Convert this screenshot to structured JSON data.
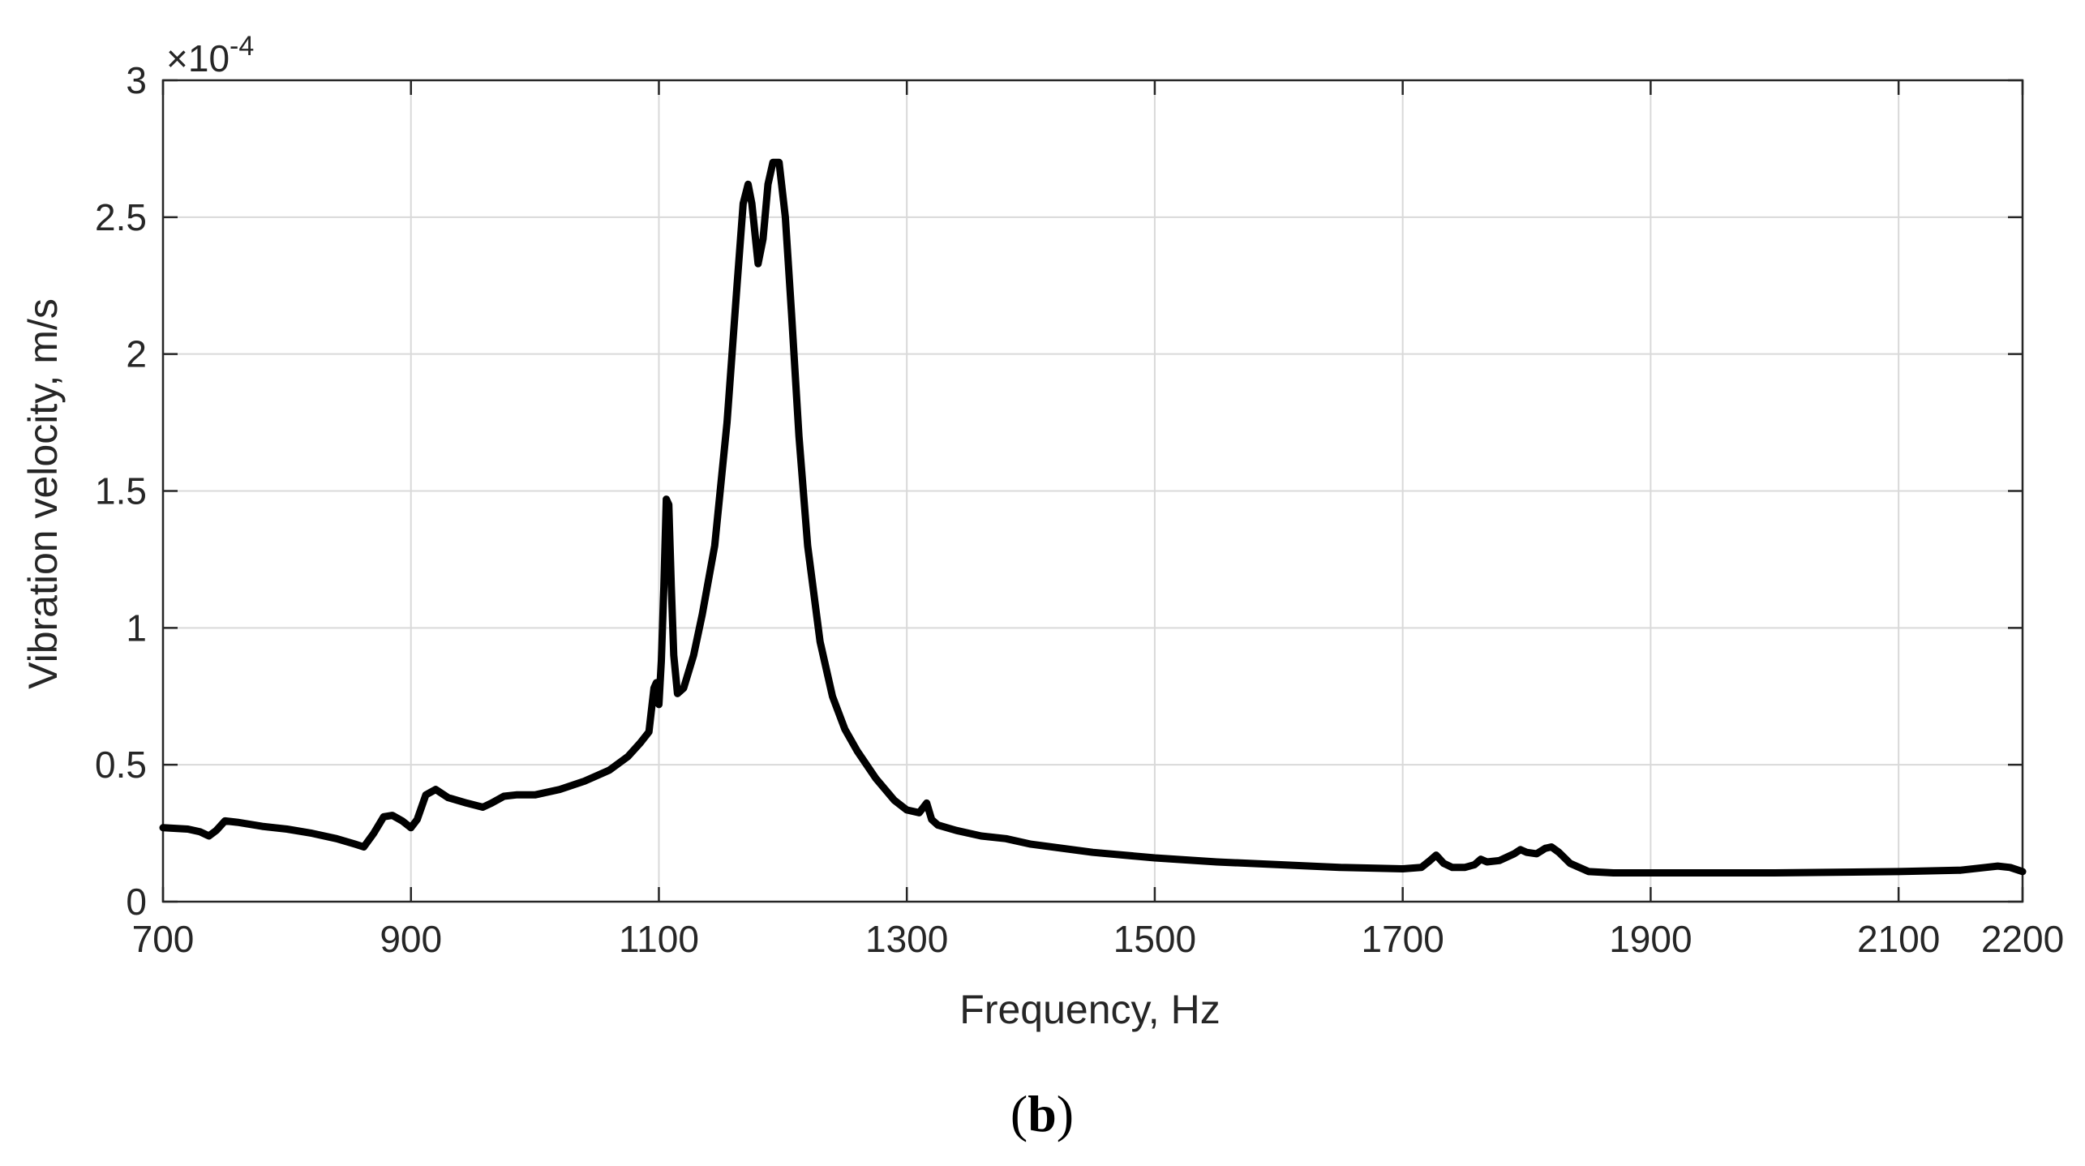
{
  "chart_data": {
    "type": "line",
    "title": "",
    "xlabel": "Frequency, Hz",
    "ylabel": "Vibration velocity, m/s",
    "y_exponent_label": "×10",
    "y_exponent_power": "-4",
    "xlim": [
      700,
      2200
    ],
    "ylim": [
      0,
      3
    ],
    "xticks": [
      700,
      900,
      1100,
      1300,
      1500,
      1700,
      1900,
      2100,
      2200
    ],
    "xtick_labels": [
      "700",
      "900",
      "1100",
      "1300",
      "1500",
      "1700",
      "1900",
      "2100",
      "2200"
    ],
    "yticks": [
      0,
      0.5,
      1,
      1.5,
      2,
      2.5,
      3
    ],
    "ytick_labels": [
      "0",
      "0.5",
      "1",
      "1.5",
      "2",
      "2.5",
      "3"
    ],
    "grid": true,
    "line_color": "#000000",
    "grid_color": "#d9d9d9",
    "axis_color": "#262626",
    "series": [
      {
        "x": [
          700,
          720,
          730,
          737,
          743,
          750,
          760,
          780,
          800,
          820,
          840,
          855,
          862,
          870,
          878,
          885,
          893,
          900,
          905,
          912,
          920,
          930,
          945,
          958,
          965,
          975,
          985,
          1000,
          1020,
          1040,
          1060,
          1075,
          1085,
          1092,
          1096,
          1098,
          1100,
          1102,
          1104,
          1106,
          1108,
          1110,
          1112,
          1115,
          1120,
          1128,
          1135,
          1145,
          1155,
          1163,
          1168,
          1172,
          1175,
          1180,
          1184,
          1188,
          1192,
          1197,
          1202,
          1207,
          1213,
          1220,
          1230,
          1240,
          1250,
          1260,
          1275,
          1290,
          1300,
          1310,
          1316,
          1320,
          1325,
          1340,
          1360,
          1380,
          1400,
          1450,
          1500,
          1550,
          1600,
          1650,
          1700,
          1715,
          1722,
          1727,
          1733,
          1740,
          1750,
          1758,
          1763,
          1768,
          1778,
          1790,
          1795,
          1800,
          1808,
          1815,
          1820,
          1826,
          1835,
          1850,
          1870,
          1900,
          2000,
          2100,
          2150,
          2170,
          2180,
          2190,
          2200
        ],
        "y": [
          0.27,
          0.265,
          0.255,
          0.24,
          0.26,
          0.295,
          0.29,
          0.275,
          0.265,
          0.25,
          0.23,
          0.21,
          0.2,
          0.25,
          0.31,
          0.315,
          0.295,
          0.27,
          0.3,
          0.39,
          0.41,
          0.38,
          0.36,
          0.345,
          0.36,
          0.385,
          0.39,
          0.39,
          0.41,
          0.44,
          0.48,
          0.53,
          0.58,
          0.62,
          0.78,
          0.8,
          0.72,
          0.88,
          1.15,
          1.47,
          1.45,
          1.15,
          0.9,
          0.76,
          0.78,
          0.9,
          1.05,
          1.3,
          1.75,
          2.25,
          2.55,
          2.62,
          2.55,
          2.33,
          2.42,
          2.62,
          2.7,
          2.7,
          2.5,
          2.15,
          1.7,
          1.3,
          0.95,
          0.75,
          0.63,
          0.55,
          0.45,
          0.37,
          0.335,
          0.325,
          0.36,
          0.3,
          0.28,
          0.26,
          0.24,
          0.23,
          0.21,
          0.18,
          0.16,
          0.145,
          0.135,
          0.125,
          0.12,
          0.125,
          0.15,
          0.17,
          0.14,
          0.125,
          0.125,
          0.135,
          0.155,
          0.145,
          0.15,
          0.175,
          0.19,
          0.18,
          0.175,
          0.195,
          0.2,
          0.18,
          0.14,
          0.11,
          0.105,
          0.105,
          0.105,
          0.11,
          0.115,
          0.125,
          0.13,
          0.125,
          0.11
        ]
      }
    ]
  },
  "caption": {
    "open": "(",
    "letter": "b",
    "close": ")"
  }
}
